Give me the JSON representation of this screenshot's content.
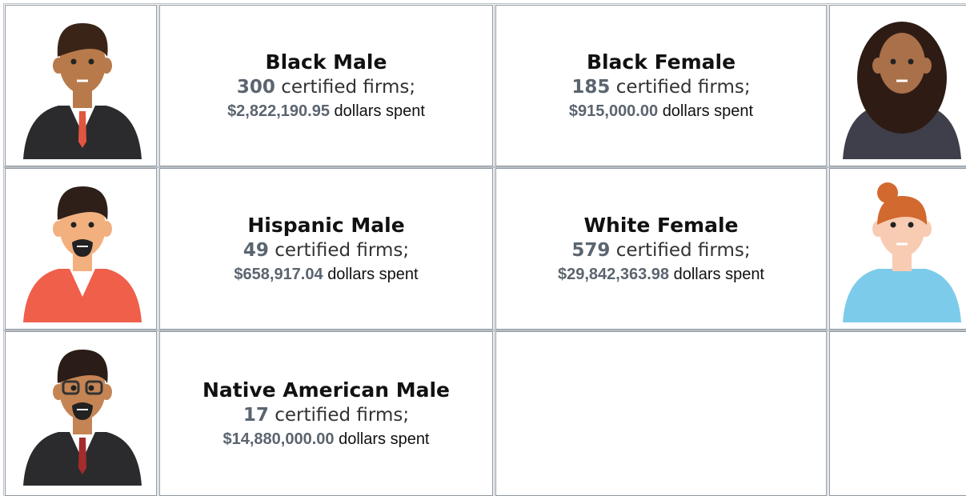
{
  "cells": [
    {
      "title": "Black Male",
      "firms": 300,
      "firms_text": "certified firms;",
      "dollars": "$2,822,190.95",
      "dollars_text": "dollars spent"
    },
    {
      "title": "Black Female",
      "firms": 185,
      "firms_text": "certified firms;",
      "dollars": "$915,000.00",
      "dollars_text": "dollars spent"
    },
    {
      "title": "Hispanic Male",
      "firms": 49,
      "firms_text": "certified firms;",
      "dollars": "$658,917.04",
      "dollars_text": "dollars spent"
    },
    {
      "title": "White Female",
      "firms": 579,
      "firms_text": "certified firms;",
      "dollars": "$29,842,363.98",
      "dollars_text": "dollars spent"
    },
    {
      "title": "Native American Male",
      "firms": 17,
      "firms_text": "certified firms;",
      "dollars": "$14,880,000.00",
      "dollars_text": "dollars spent"
    }
  ]
}
